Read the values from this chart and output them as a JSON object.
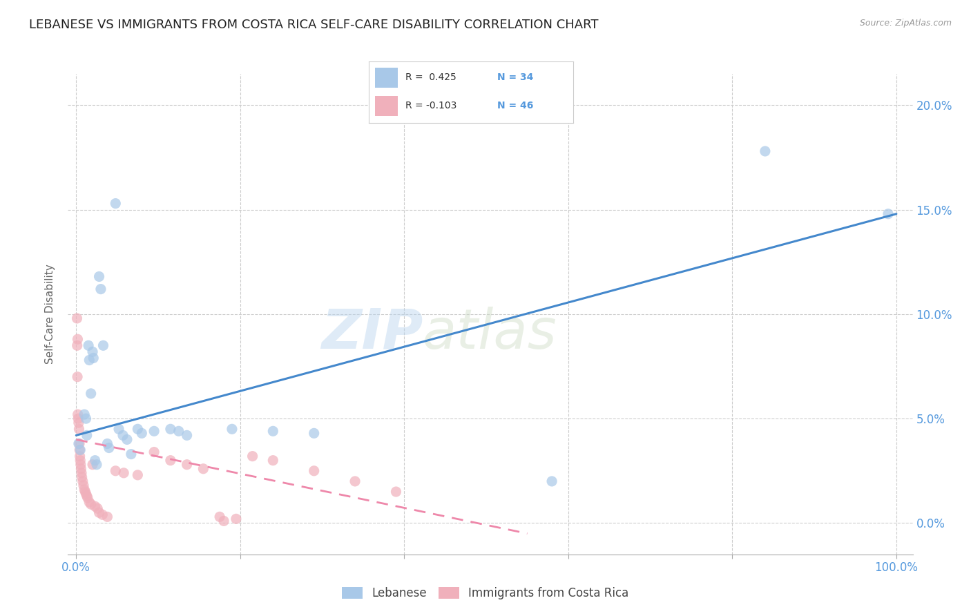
{
  "title": "LEBANESE VS IMMIGRANTS FROM COSTA RICA SELF-CARE DISABILITY CORRELATION CHART",
  "source": "Source: ZipAtlas.com",
  "ylabel": "Self-Care Disability",
  "ytick_values": [
    0.0,
    5.0,
    10.0,
    15.0,
    20.0
  ],
  "xlim": [
    -1,
    102
  ],
  "ylim": [
    -1.5,
    21.5
  ],
  "legend_labels": [
    "Lebanese",
    "Immigrants from Costa Rica"
  ],
  "color_blue": "#a8c8e8",
  "color_pink": "#f0b0bb",
  "color_blue_text": "#5599dd",
  "line_blue": "#4488cc",
  "line_pink": "#ee88aa",
  "watermark_zip": "ZIP",
  "watermark_atlas": "atlas",
  "blue_scatter": [
    [
      0.3,
      3.8
    ],
    [
      0.5,
      3.5
    ],
    [
      1.0,
      5.2
    ],
    [
      1.2,
      5.0
    ],
    [
      1.3,
      4.2
    ],
    [
      1.5,
      8.5
    ],
    [
      1.6,
      7.8
    ],
    [
      1.8,
      6.2
    ],
    [
      2.0,
      8.2
    ],
    [
      2.1,
      7.9
    ],
    [
      2.3,
      3.0
    ],
    [
      2.5,
      2.8
    ],
    [
      2.8,
      11.8
    ],
    [
      3.0,
      11.2
    ],
    [
      3.3,
      8.5
    ],
    [
      3.8,
      3.8
    ],
    [
      4.0,
      3.6
    ],
    [
      4.8,
      15.3
    ],
    [
      5.2,
      4.5
    ],
    [
      5.7,
      4.2
    ],
    [
      6.2,
      4.0
    ],
    [
      6.7,
      3.3
    ],
    [
      7.5,
      4.5
    ],
    [
      8.0,
      4.3
    ],
    [
      9.5,
      4.4
    ],
    [
      11.5,
      4.5
    ],
    [
      12.5,
      4.4
    ],
    [
      13.5,
      4.2
    ],
    [
      19.0,
      4.5
    ],
    [
      24.0,
      4.4
    ],
    [
      29.0,
      4.3
    ],
    [
      58.0,
      2.0
    ],
    [
      84.0,
      17.8
    ],
    [
      99.0,
      14.8
    ]
  ],
  "pink_scatter": [
    [
      0.1,
      9.8
    ],
    [
      0.12,
      8.5
    ],
    [
      0.15,
      7.0
    ],
    [
      0.18,
      8.8
    ],
    [
      0.2,
      5.2
    ],
    [
      0.25,
      5.0
    ],
    [
      0.3,
      4.8
    ],
    [
      0.35,
      4.5
    ],
    [
      0.4,
      3.8
    ],
    [
      0.42,
      3.5
    ],
    [
      0.45,
      3.2
    ],
    [
      0.5,
      3.0
    ],
    [
      0.55,
      2.8
    ],
    [
      0.6,
      2.6
    ],
    [
      0.65,
      2.4
    ],
    [
      0.7,
      2.2
    ],
    [
      0.8,
      2.0
    ],
    [
      0.9,
      1.8
    ],
    [
      1.0,
      1.6
    ],
    [
      1.1,
      1.5
    ],
    [
      1.2,
      1.4
    ],
    [
      1.3,
      1.3
    ],
    [
      1.4,
      1.2
    ],
    [
      1.6,
      1.0
    ],
    [
      1.8,
      0.9
    ],
    [
      2.0,
      2.8
    ],
    [
      2.3,
      0.8
    ],
    [
      2.6,
      0.7
    ],
    [
      2.8,
      0.5
    ],
    [
      3.2,
      0.4
    ],
    [
      3.8,
      0.3
    ],
    [
      4.8,
      2.5
    ],
    [
      5.8,
      2.4
    ],
    [
      7.5,
      2.3
    ],
    [
      9.5,
      3.4
    ],
    [
      11.5,
      3.0
    ],
    [
      13.5,
      2.8
    ],
    [
      15.5,
      2.6
    ],
    [
      17.5,
      0.3
    ],
    [
      19.5,
      0.2
    ],
    [
      21.5,
      3.2
    ],
    [
      24.0,
      3.0
    ],
    [
      29.0,
      2.5
    ],
    [
      34.0,
      2.0
    ],
    [
      39.0,
      1.5
    ],
    [
      18.0,
      0.1
    ]
  ],
  "blue_line_x": [
    0,
    100
  ],
  "blue_line_y": [
    4.2,
    14.8
  ],
  "pink_line_x": [
    0,
    55
  ],
  "pink_line_y": [
    4.0,
    -0.5
  ]
}
